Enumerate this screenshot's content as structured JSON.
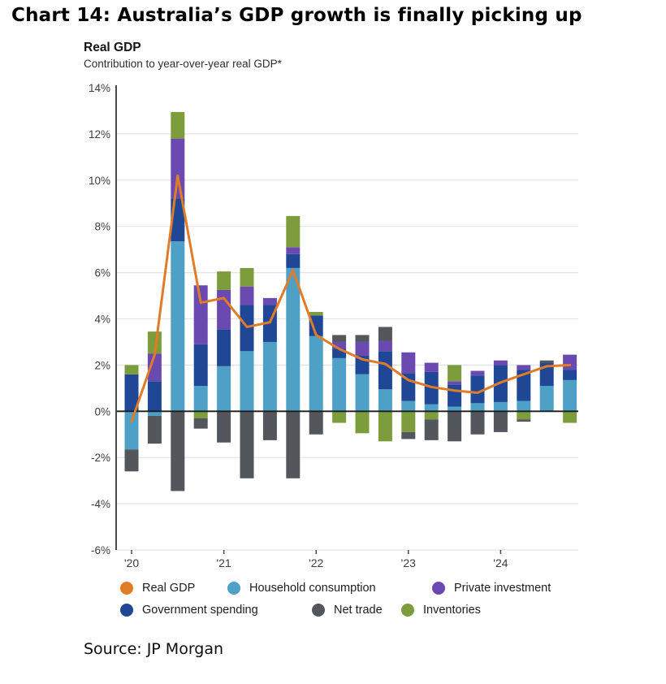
{
  "page": {
    "title": "Chart 14: Australia’s GDP growth is finally picking up",
    "source": "Source: JP Morgan"
  },
  "chart": {
    "heading": "Real GDP",
    "subtitle": "Contribution to year-over-year real GDP*"
  },
  "colors": {
    "real_gdp_line": "#e07c28",
    "household": "#4fa0c7",
    "government": "#1f4795",
    "private": "#6a4ab0",
    "net_trade": "#53565a",
    "inventories": "#7d9c3c",
    "gridline": "#e4e4e4",
    "zero_line": "#1c1c1c",
    "axis_line": "#4a4a4a",
    "tick_text": "#3d3d3d"
  },
  "chart_data": {
    "type": "bar",
    "stacked": true,
    "ylim": [
      -6,
      14
    ],
    "grid": true,
    "y_ticks": [
      {
        "v": 14,
        "label": "14%"
      },
      {
        "v": 12,
        "label": "12%"
      },
      {
        "v": 10,
        "label": "10%"
      },
      {
        "v": 8,
        "label": "8%"
      },
      {
        "v": 6,
        "label": "6%"
      },
      {
        "v": 4,
        "label": "4%"
      },
      {
        "v": 2,
        "label": "2%"
      },
      {
        "v": 0,
        "label": "0%"
      },
      {
        "v": -2,
        "label": "-2%"
      },
      {
        "v": -4,
        "label": "-4%"
      },
      {
        "v": -6,
        "label": "-6%"
      }
    ],
    "x_year_ticks": [
      {
        "label": "'20",
        "bar_index": 0
      },
      {
        "label": "'21",
        "bar_index": 4
      },
      {
        "label": "'22",
        "bar_index": 8
      },
      {
        "label": "'23",
        "bar_index": 12
      },
      {
        "label": "'24",
        "bar_index": 16
      }
    ],
    "num_bars": 20,
    "series": [
      {
        "name": "Household consumption",
        "key": "household",
        "values": [
          -1.65,
          -0.2,
          7.35,
          1.1,
          1.95,
          2.6,
          3.0,
          6.2,
          3.25,
          2.3,
          1.6,
          0.95,
          0.45,
          0.3,
          0.2,
          0.35,
          0.4,
          0.45,
          1.1,
          1.35
        ]
      },
      {
        "name": "Government spending",
        "key": "government",
        "values": [
          1.6,
          1.3,
          1.85,
          1.8,
          1.6,
          2.0,
          1.6,
          0.6,
          0.9,
          0.4,
          0.8,
          1.65,
          1.2,
          1.4,
          0.95,
          1.2,
          1.6,
          1.35,
          1.0,
          0.45
        ]
      },
      {
        "name": "Private investment",
        "key": "private",
        "values": [
          0,
          1.2,
          2.6,
          2.55,
          1.7,
          0.8,
          0.3,
          0.3,
          0,
          0.3,
          0.6,
          0.45,
          0.9,
          0.4,
          0.15,
          0.2,
          0.2,
          0.2,
          0,
          0.65
        ]
      },
      {
        "name": "Net trade",
        "key": "net_trade",
        "values": [
          -0.95,
          -1.2,
          -3.45,
          -0.45,
          -1.35,
          -2.9,
          -1.25,
          -2.9,
          -1.0,
          0.3,
          0.3,
          0.6,
          -0.3,
          -0.9,
          -1.3,
          -1.0,
          -0.9,
          -0.1,
          0.1,
          0
        ]
      },
      {
        "name": "Inventories",
        "key": "inventories",
        "values": [
          0.4,
          0.95,
          1.15,
          -0.3,
          0.8,
          0.8,
          0,
          1.35,
          0.15,
          -0.5,
          -0.95,
          -1.3,
          -0.9,
          -0.35,
          0.7,
          0,
          0,
          -0.35,
          0,
          -0.5
        ]
      }
    ],
    "line": {
      "name": "Real GDP",
      "key": "real_gdp_line",
      "values": [
        -0.45,
        2.45,
        10.2,
        4.7,
        4.9,
        3.65,
        3.85,
        6.1,
        3.3,
        2.7,
        2.25,
        2.05,
        1.35,
        1.05,
        0.9,
        0.8,
        1.25,
        1.6,
        1.95,
        2.0
      ]
    },
    "positive_stack_order": [
      0,
      1,
      2,
      3,
      4
    ],
    "negative_stack_order": [
      0,
      4,
      3,
      1,
      2
    ]
  }
}
